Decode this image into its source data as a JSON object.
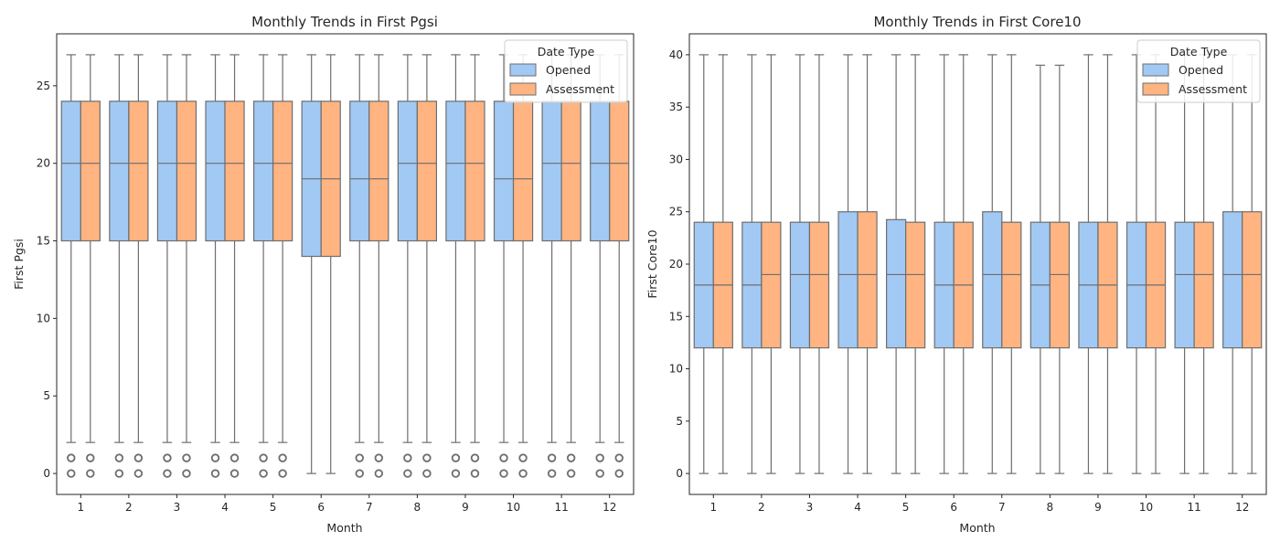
{
  "legend_title": "Date Type",
  "series_names": [
    "Opened",
    "Assessment"
  ],
  "series_colors": [
    "#a1c9f4",
    "#ffb482"
  ],
  "edge_color": "#6e6e6e",
  "chart_data": [
    {
      "type": "box",
      "title": "Monthly Trends in First Pgsi",
      "xlabel": "Month",
      "ylabel": "First Pgsi",
      "ylim": [
        -1.35,
        28.35
      ],
      "yticks": [
        0,
        5,
        10,
        15,
        20,
        25
      ],
      "categories": [
        "1",
        "2",
        "3",
        "4",
        "5",
        "6",
        "7",
        "8",
        "9",
        "10",
        "11",
        "12"
      ],
      "legend_position": "upper right",
      "series": [
        {
          "name": "Opened",
          "boxes": [
            {
              "min": 2,
              "q1": 15,
              "median": 20,
              "q3": 24,
              "max": 27,
              "outliers": [
                0,
                1
              ]
            },
            {
              "min": 2,
              "q1": 15,
              "median": 20,
              "q3": 24,
              "max": 27,
              "outliers": [
                0,
                1
              ]
            },
            {
              "min": 2,
              "q1": 15,
              "median": 20,
              "q3": 24,
              "max": 27,
              "outliers": [
                0,
                1
              ]
            },
            {
              "min": 2,
              "q1": 15,
              "median": 20,
              "q3": 24,
              "max": 27,
              "outliers": [
                0,
                1
              ]
            },
            {
              "min": 2,
              "q1": 15,
              "median": 20,
              "q3": 24,
              "max": 27,
              "outliers": [
                0,
                1
              ]
            },
            {
              "min": 0,
              "q1": 14,
              "median": 19,
              "q3": 24,
              "max": 27,
              "outliers": []
            },
            {
              "min": 2,
              "q1": 15,
              "median": 19,
              "q3": 24,
              "max": 27,
              "outliers": [
                0,
                1
              ]
            },
            {
              "min": 2,
              "q1": 15,
              "median": 20,
              "q3": 24,
              "max": 27,
              "outliers": [
                0,
                1
              ]
            },
            {
              "min": 2,
              "q1": 15,
              "median": 20,
              "q3": 24,
              "max": 27,
              "outliers": [
                0,
                1
              ]
            },
            {
              "min": 2,
              "q1": 15,
              "median": 19,
              "q3": 24,
              "max": 27,
              "outliers": [
                0,
                1
              ]
            },
            {
              "min": 2,
              "q1": 15,
              "median": 20,
              "q3": 24,
              "max": 27,
              "outliers": [
                0,
                1
              ]
            },
            {
              "min": 2,
              "q1": 15,
              "median": 20,
              "q3": 24,
              "max": 27,
              "outliers": [
                0,
                1
              ]
            }
          ]
        },
        {
          "name": "Assessment",
          "boxes": [
            {
              "min": 2,
              "q1": 15,
              "median": 20,
              "q3": 24,
              "max": 27,
              "outliers": [
                0,
                1
              ]
            },
            {
              "min": 2,
              "q1": 15,
              "median": 20,
              "q3": 24,
              "max": 27,
              "outliers": [
                0,
                1
              ]
            },
            {
              "min": 2,
              "q1": 15,
              "median": 20,
              "q3": 24,
              "max": 27,
              "outliers": [
                0,
                1
              ]
            },
            {
              "min": 2,
              "q1": 15,
              "median": 20,
              "q3": 24,
              "max": 27,
              "outliers": [
                0,
                1
              ]
            },
            {
              "min": 2,
              "q1": 15,
              "median": 20,
              "q3": 24,
              "max": 27,
              "outliers": [
                0,
                1
              ]
            },
            {
              "min": 0,
              "q1": 14,
              "median": 19,
              "q3": 24,
              "max": 27,
              "outliers": []
            },
            {
              "min": 2,
              "q1": 15,
              "median": 19,
              "q3": 24,
              "max": 27,
              "outliers": [
                0,
                1
              ]
            },
            {
              "min": 2,
              "q1": 15,
              "median": 20,
              "q3": 24,
              "max": 27,
              "outliers": [
                0,
                1
              ]
            },
            {
              "min": 2,
              "q1": 15,
              "median": 20,
              "q3": 24,
              "max": 27,
              "outliers": [
                0,
                1
              ]
            },
            {
              "min": 2,
              "q1": 15,
              "median": 19,
              "q3": 24,
              "max": 27,
              "outliers": [
                0,
                1
              ]
            },
            {
              "min": 2,
              "q1": 15,
              "median": 20,
              "q3": 24,
              "max": 27,
              "outliers": [
                0,
                1
              ]
            },
            {
              "min": 2,
              "q1": 15,
              "median": 20,
              "q3": 24,
              "max": 27,
              "outliers": [
                0,
                1
              ]
            }
          ]
        }
      ]
    },
    {
      "type": "box",
      "title": "Monthly Trends in First Core10",
      "xlabel": "Month",
      "ylabel": "First Core10",
      "ylim": [
        -2,
        42
      ],
      "yticks": [
        0,
        5,
        10,
        15,
        20,
        25,
        30,
        35,
        40
      ],
      "categories": [
        "1",
        "2",
        "3",
        "4",
        "5",
        "6",
        "7",
        "8",
        "9",
        "10",
        "11",
        "12"
      ],
      "legend_position": "upper right",
      "series": [
        {
          "name": "Opened",
          "boxes": [
            {
              "min": 0,
              "q1": 12,
              "median": 18,
              "q3": 24,
              "max": 40,
              "outliers": []
            },
            {
              "min": 0,
              "q1": 12,
              "median": 18,
              "q3": 24,
              "max": 40,
              "outliers": []
            },
            {
              "min": 0,
              "q1": 12,
              "median": 19,
              "q3": 24,
              "max": 40,
              "outliers": []
            },
            {
              "min": 0,
              "q1": 12,
              "median": 19,
              "q3": 25,
              "max": 40,
              "outliers": []
            },
            {
              "min": 0,
              "q1": 12,
              "median": 19,
              "q3": 24.25,
              "max": 40,
              "outliers": []
            },
            {
              "min": 0,
              "q1": 12,
              "median": 18,
              "q3": 24,
              "max": 40,
              "outliers": []
            },
            {
              "min": 0,
              "q1": 12,
              "median": 19,
              "q3": 25,
              "max": 40,
              "outliers": []
            },
            {
              "min": 0,
              "q1": 12,
              "median": 18,
              "q3": 24,
              "max": 39,
              "outliers": []
            },
            {
              "min": 0,
              "q1": 12,
              "median": 18,
              "q3": 24,
              "max": 40,
              "outliers": []
            },
            {
              "min": 0,
              "q1": 12,
              "median": 18,
              "q3": 24,
              "max": 40,
              "outliers": []
            },
            {
              "min": 0,
              "q1": 12,
              "median": 19,
              "q3": 24,
              "max": 40,
              "outliers": []
            },
            {
              "min": 0,
              "q1": 12,
              "median": 19,
              "q3": 25,
              "max": 40,
              "outliers": []
            }
          ]
        },
        {
          "name": "Assessment",
          "boxes": [
            {
              "min": 0,
              "q1": 12,
              "median": 18,
              "q3": 24,
              "max": 40,
              "outliers": []
            },
            {
              "min": 0,
              "q1": 12,
              "median": 19,
              "q3": 24,
              "max": 40,
              "outliers": []
            },
            {
              "min": 0,
              "q1": 12,
              "median": 19,
              "q3": 24,
              "max": 40,
              "outliers": []
            },
            {
              "min": 0,
              "q1": 12,
              "median": 19,
              "q3": 25,
              "max": 40,
              "outliers": []
            },
            {
              "min": 0,
              "q1": 12,
              "median": 19,
              "q3": 24,
              "max": 40,
              "outliers": []
            },
            {
              "min": 0,
              "q1": 12,
              "median": 18,
              "q3": 24,
              "max": 40,
              "outliers": []
            },
            {
              "min": 0,
              "q1": 12,
              "median": 19,
              "q3": 24,
              "max": 40,
              "outliers": []
            },
            {
              "min": 0,
              "q1": 12,
              "median": 19,
              "q3": 24,
              "max": 39,
              "outliers": []
            },
            {
              "min": 0,
              "q1": 12,
              "median": 18,
              "q3": 24,
              "max": 40,
              "outliers": []
            },
            {
              "min": 0,
              "q1": 12,
              "median": 18,
              "q3": 24,
              "max": 40,
              "outliers": []
            },
            {
              "min": 0,
              "q1": 12,
              "median": 19,
              "q3": 24,
              "max": 40,
              "outliers": []
            },
            {
              "min": 0,
              "q1": 12,
              "median": 19,
              "q3": 25,
              "max": 40,
              "outliers": []
            }
          ]
        }
      ]
    }
  ]
}
